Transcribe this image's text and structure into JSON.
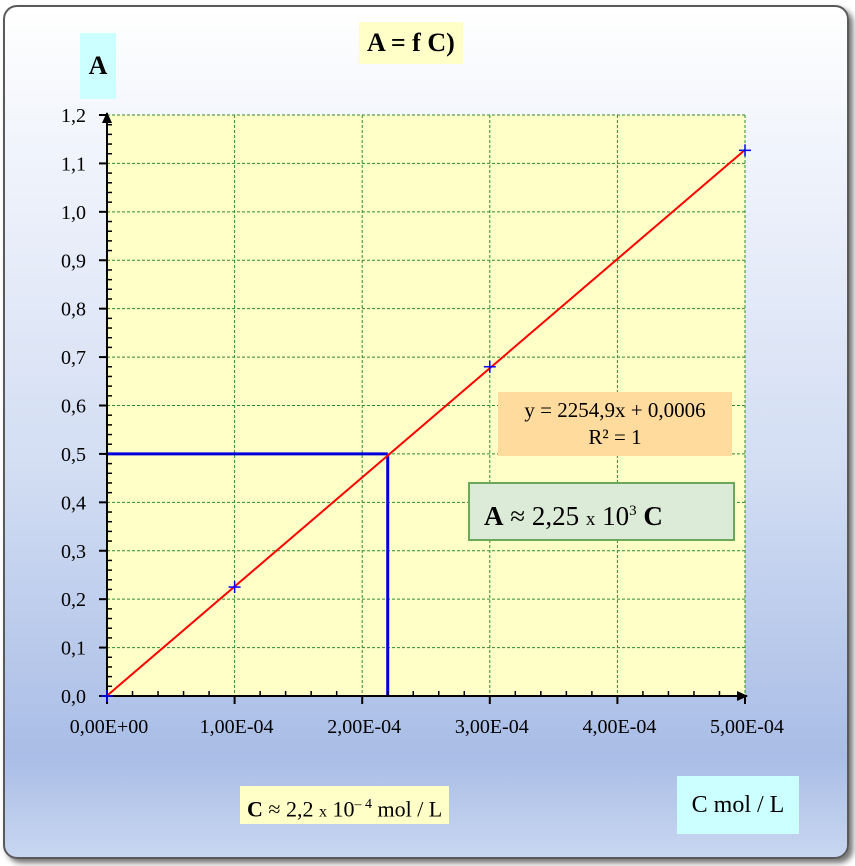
{
  "chart_data": {
    "type": "scatter",
    "title": "A = f  C)",
    "ylabel": "A",
    "xlabel": "C mol / L",
    "x_ticks": [
      "0,00E+00",
      "1,00E-04",
      "2,00E-04",
      "3,00E-04",
      "4,00E-04",
      "5,00E-04"
    ],
    "y_ticks": [
      "0,0",
      "0,1",
      "0,2",
      "0,3",
      "0,4",
      "0,5",
      "0,6",
      "0,7",
      "0,8",
      "0,9",
      "1,0",
      "1,1",
      "1,2"
    ],
    "xlim": [
      0,
      0.0005
    ],
    "ylim": [
      0,
      1.2
    ],
    "grid": true,
    "series": [
      {
        "x": [
          0,
          0.0001,
          0.0003,
          0.0005
        ],
        "y": [
          0,
          0.225,
          0.68,
          1.127
        ],
        "marker": "plus",
        "color": "#0000ff"
      }
    ],
    "trendline": {
      "slope": 2254.9,
      "intercept": 0.0006,
      "color": "#ff0000",
      "equation": "y = 2254,9x + 0,0006",
      "r2": "R² = 1"
    },
    "reading": {
      "x": 0.00022,
      "y": 0.5,
      "color": "#0000dd"
    },
    "annotations": {
      "approx_lead": "A",
      "approx_mid": "≈ 2,25",
      "approx_times": "x",
      "approx_base": "10",
      "approx_exp": "3",
      "approx_tail": "C",
      "c_lead": "C",
      "c_mid": "≈ 2,2",
      "c_times": "x",
      "c_base": "10",
      "c_exp": "– 4",
      "c_tail": "mol / L"
    },
    "colors": {
      "plot_bg": "#ffffc8",
      "grid": "#2e8b2e"
    }
  }
}
